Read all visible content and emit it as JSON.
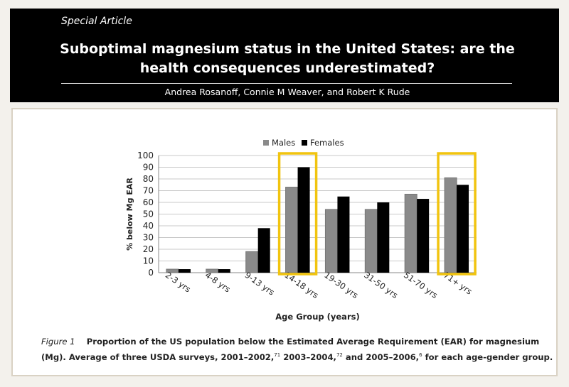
{
  "header": {
    "kicker": "Special Article",
    "title_line1": "Suboptimal magnesium status in the United States: are the",
    "title_line2": "health consequences underestimated?",
    "authors": "Andrea Rosanoff, Connie M Weaver, and Robert K Rude"
  },
  "caption": {
    "label": "Figure 1",
    "part1": "Proportion of the US population below the Estimated Average Requirement (EAR) for magnesium (Mg). Average of three USDA surveys, 2001–2002,",
    "ref1": "71",
    "part2": " 2003–2004,",
    "ref2": "72",
    "part3": " and 2005–2006,",
    "ref3": "6",
    "part4": " for each age-gender group."
  },
  "chart_data": {
    "type": "bar",
    "title": "",
    "xlabel": "Age Group (years)",
    "ylabel": "% below Mg EAR",
    "ylim": [
      0,
      100
    ],
    "yticks": [
      0,
      10,
      20,
      30,
      40,
      50,
      60,
      70,
      80,
      90,
      100
    ],
    "categories": [
      "2-3 yrs",
      "4-8 yrs",
      "9-13 yrs",
      "14-18 yrs",
      "19-30 yrs",
      "31-50 yrs",
      "51-70 yrs",
      "71+ yrs"
    ],
    "series": [
      {
        "name": "Males",
        "values": [
          3,
          3,
          18,
          73,
          54,
          54,
          67,
          81
        ],
        "color": "#8a8a8a"
      },
      {
        "name": "Females",
        "values": [
          3,
          3,
          38,
          90,
          65,
          60,
          63,
          75
        ],
        "color": "#000000"
      }
    ],
    "legend": "top",
    "highlighted_categories": [
      "14-18 yrs",
      "71+ yrs"
    ],
    "highlight_color": "#f1c40f"
  }
}
